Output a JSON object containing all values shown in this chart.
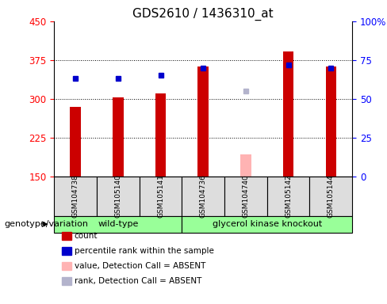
{
  "title": "GDS2610 / 1436310_at",
  "samples": [
    "GSM104738",
    "GSM105140",
    "GSM105141",
    "GSM104736",
    "GSM104740",
    "GSM105142",
    "GSM105144"
  ],
  "count_values": [
    285,
    302,
    310,
    362,
    null,
    392,
    362
  ],
  "count_absent": [
    null,
    null,
    null,
    null,
    193,
    null,
    null
  ],
  "rank_values": [
    63,
    63,
    65,
    70,
    null,
    72,
    70
  ],
  "rank_absent": [
    null,
    null,
    null,
    null,
    55,
    null,
    null
  ],
  "ylim_left": [
    150,
    450
  ],
  "ylim_right": [
    0,
    100
  ],
  "yticks_left": [
    150,
    225,
    300,
    375,
    450
  ],
  "yticks_right": [
    0,
    25,
    50,
    75,
    100
  ],
  "bar_color": "#cc0000",
  "bar_absent_color": "#ffb3b3",
  "rank_color": "#0000cc",
  "rank_absent_color": "#b3b3cc",
  "bar_width": 0.25,
  "group1_samples": [
    0,
    1,
    2
  ],
  "group2_samples": [
    3,
    4,
    5,
    6
  ],
  "group1_label": "wild-type",
  "group2_label": "glycerol kinase knockout",
  "group_color": "#99ff99",
  "cell_color": "#dddddd",
  "genotype_label": "genotype/variation",
  "legend_items": [
    {
      "label": "count",
      "color": "#cc0000"
    },
    {
      "label": "percentile rank within the sample",
      "color": "#0000cc"
    },
    {
      "label": "value, Detection Call = ABSENT",
      "color": "#ffb3b3"
    },
    {
      "label": "rank, Detection Call = ABSENT",
      "color": "#b3b3cc"
    }
  ]
}
